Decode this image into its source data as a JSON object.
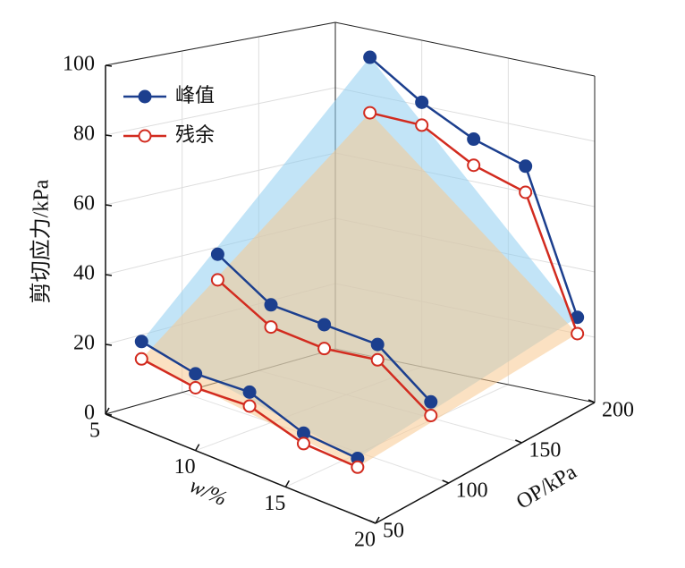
{
  "chart_data": {
    "type": "line3d",
    "x_label": "w/%",
    "y_label": "OP/kPa",
    "z_label": "剪切应力/kPa",
    "x": [
      7,
      10,
      13,
      16,
      19
    ],
    "op_levels": [
      50,
      100,
      200
    ],
    "xlim": [
      5,
      20
    ],
    "xticks": [
      5,
      10,
      15,
      20
    ],
    "ylim": [
      50,
      200
    ],
    "yticks": [
      50,
      100,
      150,
      200
    ],
    "zlim": [
      0,
      100
    ],
    "zticks": [
      0,
      20,
      40,
      60,
      80,
      100
    ],
    "grid": true,
    "legend": "upper left",
    "series": [
      {
        "name": "峰值",
        "color": "#1c3f8e",
        "marker": "filled",
        "surface_color": "#8fcdf0",
        "values": [
          [
            25,
            22,
            23,
            17.5,
            16.5
          ],
          [
            44,
            34.5,
            34,
            33.5,
            22
          ],
          [
            91.5,
            81,
            73,
            68,
            25
          ]
        ]
      },
      {
        "name": "残余",
        "color": "#d22b1f",
        "marker": "open",
        "surface_color": "#f7c98f",
        "values": [
          [
            20,
            18,
            19,
            14.5,
            14
          ],
          [
            36.5,
            28,
            27,
            29,
            18
          ],
          [
            74.5,
            74,
            65,
            60,
            20
          ]
        ]
      }
    ]
  }
}
